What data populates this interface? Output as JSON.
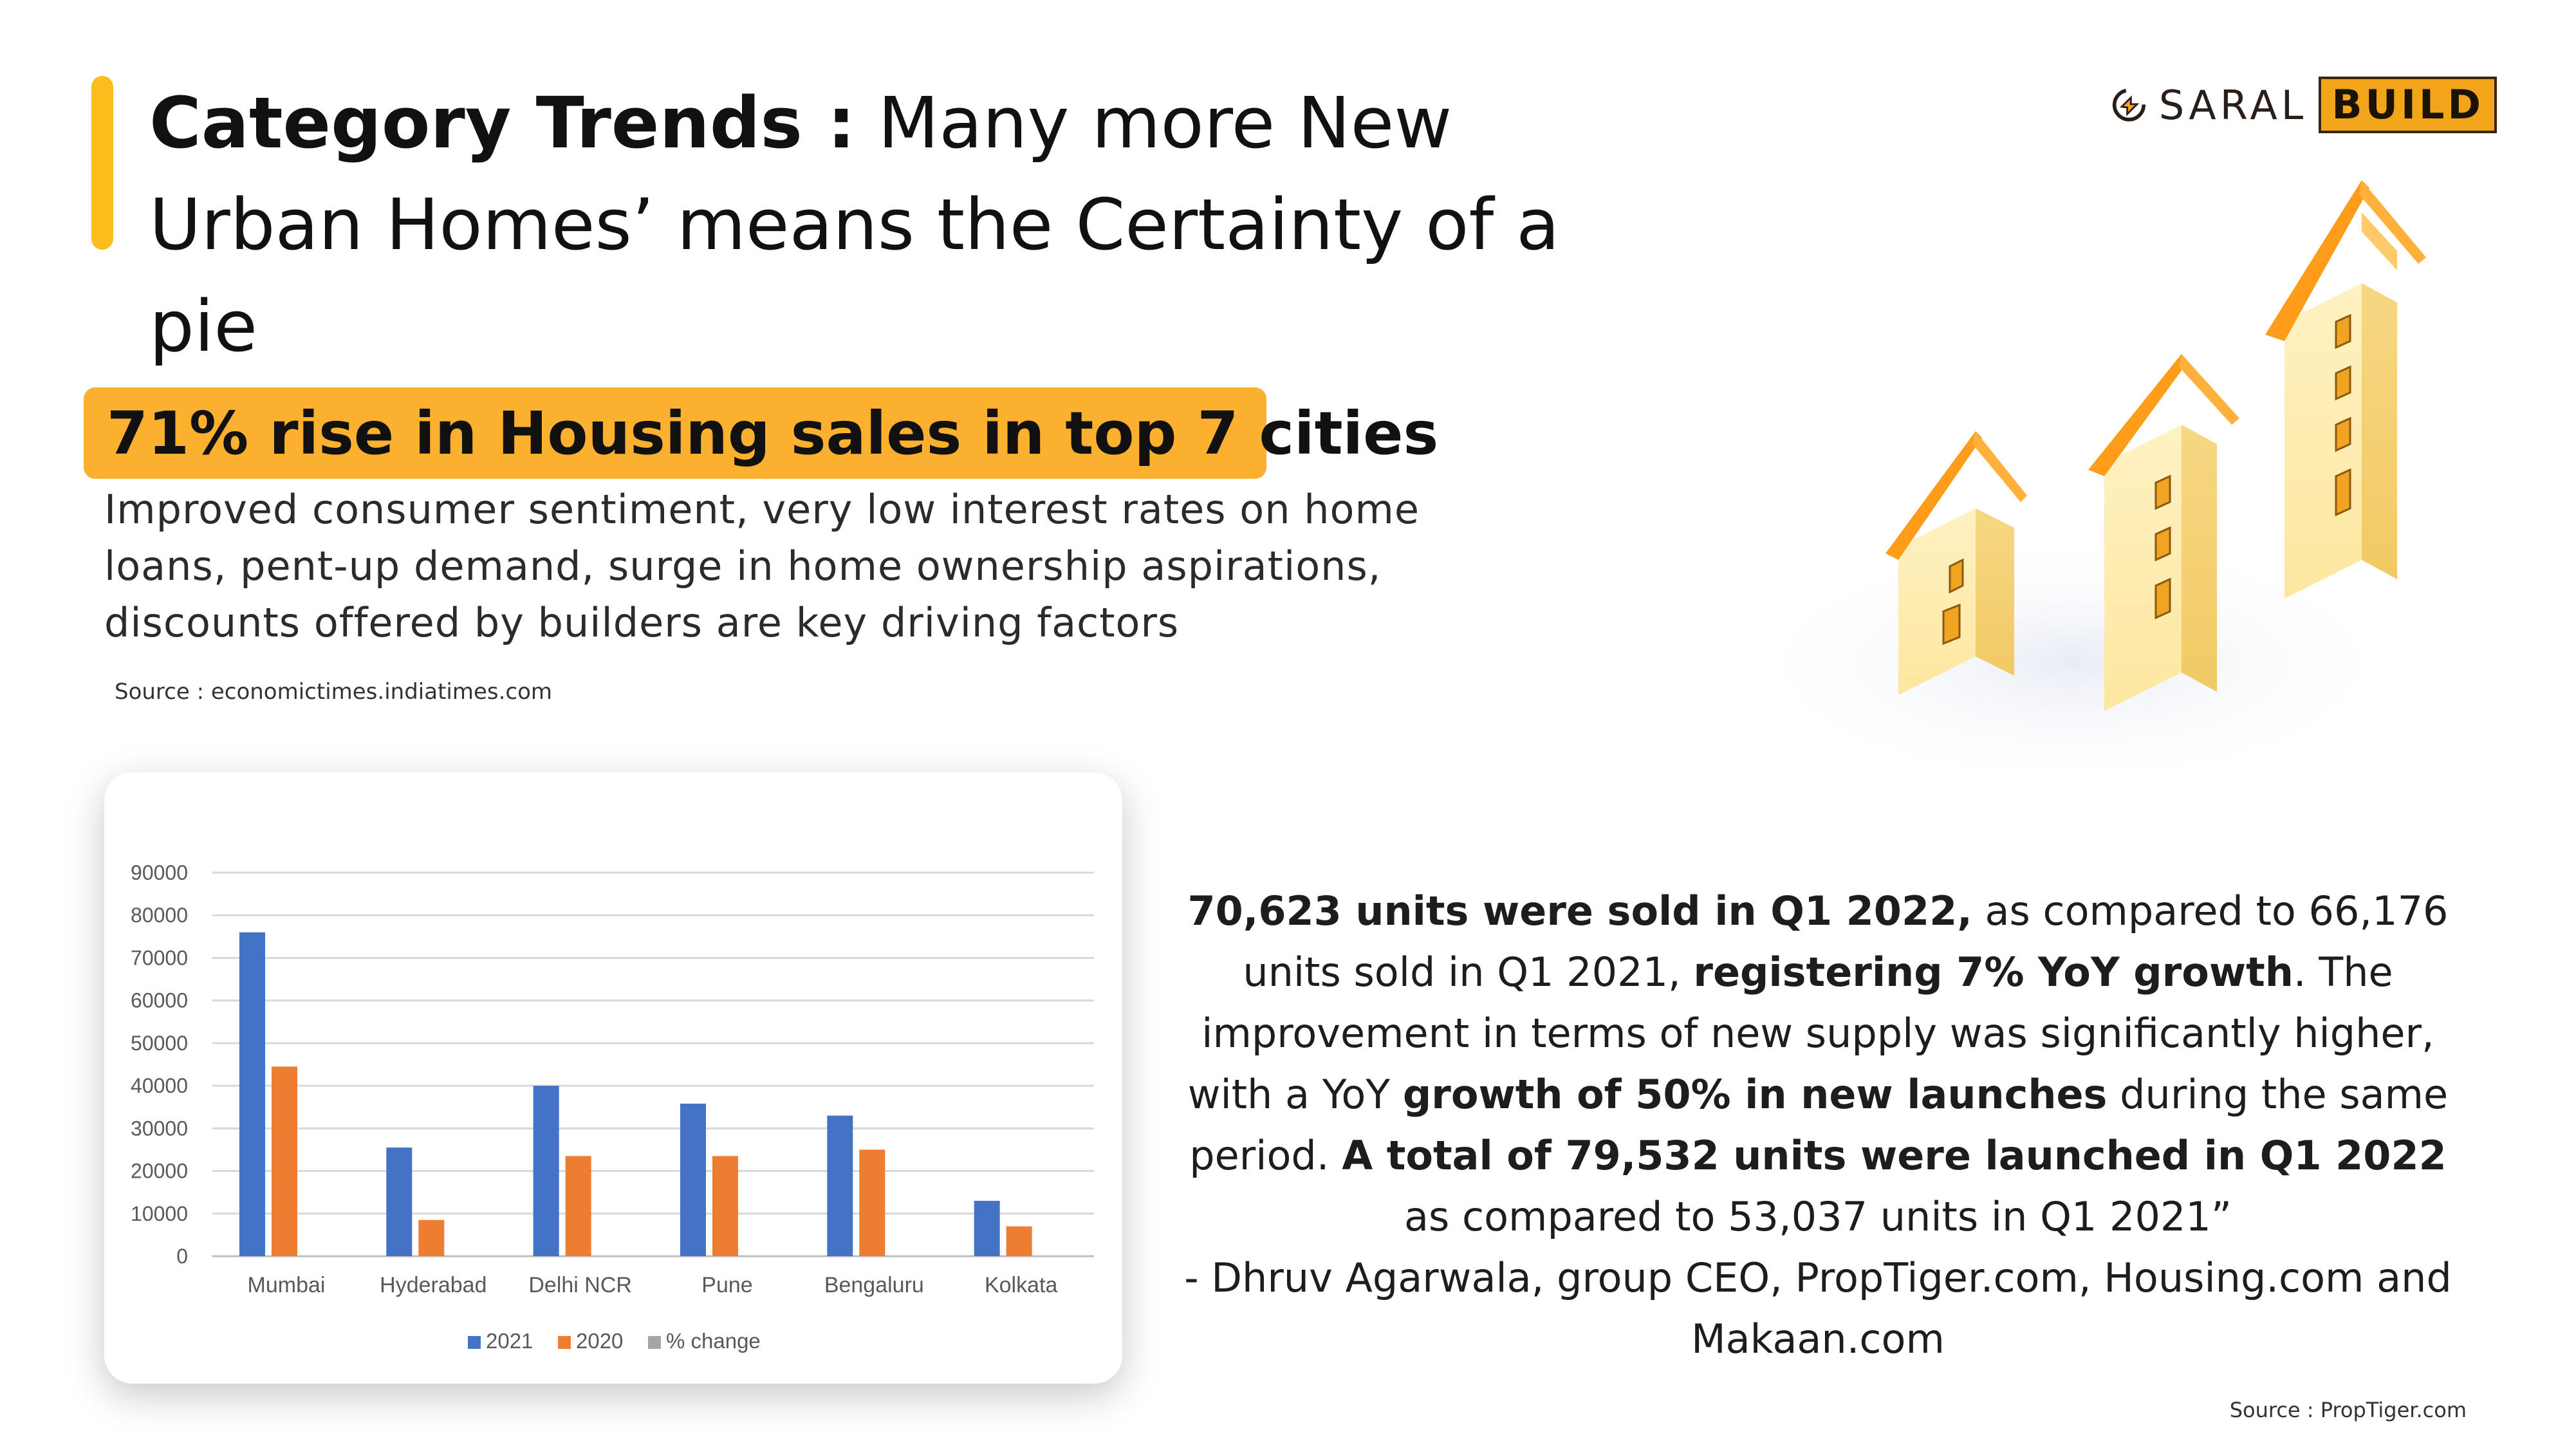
{
  "header": {
    "title_bold": "Category Trends :",
    "title_rest": " Many more New Urban Homes’ means the Certainty of a pie"
  },
  "logo": {
    "saral": "SARAL",
    "build": "BUILD"
  },
  "highlight": "71% rise in Housing sales in top 7 cities",
  "body_text": "Improved consumer sentiment, very low interest rates on home loans, pent-up demand, surge in home ownership aspirations, discounts offered by builders are key driving factors",
  "source_left": "Source : economictimes.indiatimes.com",
  "quote": {
    "p1_bold": "70,623 units were sold in Q1 2022,",
    "p1_rest": " as compared to 66,176 units sold in Q1 2021, ",
    "p2_bold": "registering 7% YoY growth",
    "p2_rest": ". The improvement in terms of new supply was significantly higher, with a YoY ",
    "p3_bold": "growth of 50% in new launches",
    "p3_rest": " during the same period. ",
    "p4_bold": "A total of 79,532 units were launched in Q1 2022",
    "p4_rest": " as compared to 53,037 units in Q1 2021”"
  },
  "attribution": "- Dhruv Agarwala, group CEO, PropTiger.com, Housing.com and Makaan.com",
  "source_right": "Source : PropTiger.com",
  "colors": {
    "accent": "#fbbd1c",
    "highlight_bg": "#fbb02f",
    "series_2021": "#4472c4",
    "series_2020": "#ed7d31",
    "series_pct": "#a5a5a5"
  },
  "chart_data": {
    "type": "bar",
    "categories": [
      "Mumbai",
      "Hyderabad",
      "Delhi NCR",
      "Pune",
      "Bengaluru",
      "Kolkata"
    ],
    "series": [
      {
        "name": "2021",
        "values": [
          76000,
          25500,
          40000,
          35800,
          33000,
          13000
        ]
      },
      {
        "name": "2020",
        "values": [
          44500,
          8500,
          23500,
          23500,
          25000,
          7000
        ]
      },
      {
        "name": "% change",
        "values": [
          null,
          null,
          null,
          null,
          null,
          null
        ]
      }
    ],
    "ylim": [
      0,
      90000
    ],
    "yticks": [
      0,
      10000,
      20000,
      30000,
      40000,
      50000,
      60000,
      70000,
      80000,
      90000
    ],
    "grid": true,
    "legend": "bottom"
  }
}
